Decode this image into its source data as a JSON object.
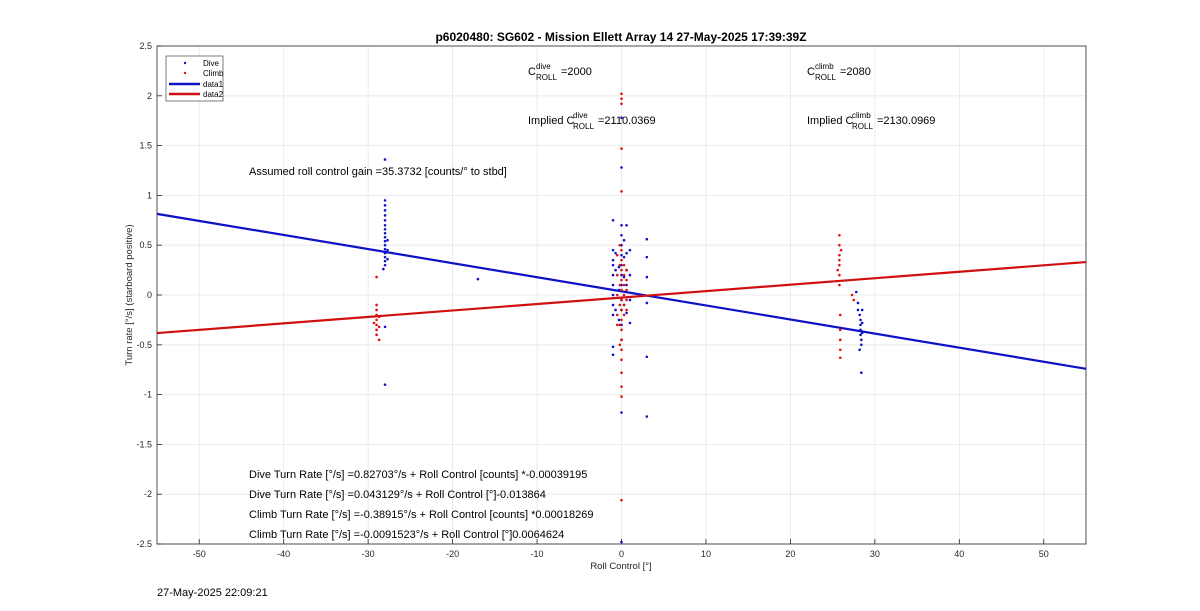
{
  "chart_data": {
    "type": "scatter",
    "title": "p6020480: SG602 - Mission Ellett Array 14 27-May-2025 17:39:39Z",
    "xlabel": "Roll Control [°]",
    "ylabel": "Turn rate [°/s] (starboard positive)",
    "xlim": [
      -55,
      55
    ],
    "ylim": [
      -2.5,
      2.5
    ],
    "xticks": [
      -50,
      -40,
      -30,
      -20,
      -10,
      0,
      10,
      20,
      30,
      40,
      50
    ],
    "yticks": [
      -2.5,
      -2,
      -1.5,
      -1,
      -0.5,
      0,
      0.5,
      1,
      1.5,
      2,
      2.5
    ],
    "grid": true,
    "legend_position": "top-left",
    "series": [
      {
        "name": "Dive",
        "kind": "points",
        "color": "#1010d0",
        "points": [
          [
            -28,
            1.36
          ],
          [
            -28,
            0.95
          ],
          [
            -28,
            0.9
          ],
          [
            -28,
            0.85
          ],
          [
            -28,
            0.8
          ],
          [
            -28,
            0.75
          ],
          [
            -28,
            0.7
          ],
          [
            -28,
            0.66
          ],
          [
            -28,
            0.62
          ],
          [
            -28,
            0.58
          ],
          [
            -28,
            0.54
          ],
          [
            -28,
            0.5
          ],
          [
            -28,
            0.46
          ],
          [
            -28,
            0.42
          ],
          [
            -28,
            0.38
          ],
          [
            -28,
            0.34
          ],
          [
            -28,
            0.3
          ],
          [
            -27.7,
            0.55
          ],
          [
            -27.7,
            0.45
          ],
          [
            -27.7,
            0.36
          ],
          [
            -28.2,
            0.26
          ],
          [
            -28,
            -0.32
          ],
          [
            -28,
            -0.9
          ],
          [
            -17,
            0.16
          ],
          [
            -1,
            0.75
          ],
          [
            -1,
            0.45
          ],
          [
            -1,
            0.35
          ],
          [
            -1,
            0.3
          ],
          [
            -1,
            0.2
          ],
          [
            -1,
            0.1
          ],
          [
            -1,
            0
          ],
          [
            -1,
            -0.1
          ],
          [
            -1,
            -0.2
          ],
          [
            -1,
            -0.52
          ],
          [
            -1,
            -0.6
          ],
          [
            -0.7,
            0.42
          ],
          [
            -0.7,
            0.25
          ],
          [
            -0.7,
            -0.15
          ],
          [
            -0.3,
            0.28
          ],
          [
            -0.3,
            0.05
          ],
          [
            -0.3,
            -0.25
          ],
          [
            0,
            1.78
          ],
          [
            0,
            1.28
          ],
          [
            0,
            0.7
          ],
          [
            0,
            0.6
          ],
          [
            0,
            0.5
          ],
          [
            0,
            0.4
          ],
          [
            0,
            0.3
          ],
          [
            0,
            0.2
          ],
          [
            0,
            0.1
          ],
          [
            0,
            -0.05
          ],
          [
            0,
            -0.15
          ],
          [
            0,
            -0.3
          ],
          [
            0,
            -0.45
          ],
          [
            0,
            -1.18
          ],
          [
            0,
            -2.48
          ],
          [
            0.3,
            0.55
          ],
          [
            0.3,
            0.38
          ],
          [
            0.3,
            0.18
          ],
          [
            0.3,
            -0.1
          ],
          [
            0.6,
            0.7
          ],
          [
            0.6,
            0.42
          ],
          [
            0.6,
            0.25
          ],
          [
            0.6,
            0.1
          ],
          [
            0.6,
            -0.18
          ],
          [
            1,
            0.45
          ],
          [
            1,
            0.2
          ],
          [
            1,
            -0.05
          ],
          [
            1,
            -0.28
          ],
          [
            3,
            0.56
          ],
          [
            3,
            0.38
          ],
          [
            3,
            0.18
          ],
          [
            3,
            -0.08
          ],
          [
            3,
            -0.62
          ],
          [
            3,
            -1.22
          ],
          [
            27.8,
            0.03
          ],
          [
            28,
            -0.08
          ],
          [
            28,
            -0.15
          ],
          [
            28.2,
            -0.2
          ],
          [
            28.3,
            -0.25
          ],
          [
            28.3,
            -0.3
          ],
          [
            28.3,
            -0.35
          ],
          [
            28.3,
            -0.4
          ],
          [
            28.4,
            -0.45
          ],
          [
            28.4,
            -0.5
          ],
          [
            28.2,
            -0.55
          ],
          [
            28.4,
            -0.78
          ],
          [
            28.5,
            -0.15
          ],
          [
            28.5,
            -0.28
          ],
          [
            28.5,
            -0.38
          ]
        ]
      },
      {
        "name": "Climb",
        "kind": "points",
        "color": "#e01010",
        "points": [
          [
            -29,
            0.18
          ],
          [
            -29,
            -0.1
          ],
          [
            -29,
            -0.15
          ],
          [
            -29,
            -0.2
          ],
          [
            -29,
            -0.25
          ],
          [
            -29,
            -0.3
          ],
          [
            -29,
            -0.35
          ],
          [
            -29,
            -0.4
          ],
          [
            -28.7,
            -0.22
          ],
          [
            -28.7,
            -0.32
          ],
          [
            -28.7,
            -0.45
          ],
          [
            -29.3,
            -0.28
          ],
          [
            -0.5,
            0.4
          ],
          [
            -0.5,
            0.2
          ],
          [
            -0.5,
            0
          ],
          [
            -0.5,
            -0.2
          ],
          [
            -0.5,
            -0.3
          ],
          [
            -0.2,
            0.5
          ],
          [
            -0.2,
            0.3
          ],
          [
            -0.2,
            0.1
          ],
          [
            -0.2,
            -0.1
          ],
          [
            -0.2,
            -0.3
          ],
          [
            -0.2,
            -0.5
          ],
          [
            0,
            2.02
          ],
          [
            0,
            1.97
          ],
          [
            0,
            1.92
          ],
          [
            0,
            1.47
          ],
          [
            0,
            1.04
          ],
          [
            0,
            0.45
          ],
          [
            0,
            0.35
          ],
          [
            0,
            0.25
          ],
          [
            0,
            0.15
          ],
          [
            0,
            0.05
          ],
          [
            0,
            -0.05
          ],
          [
            0,
            -0.15
          ],
          [
            0,
            -0.25
          ],
          [
            0,
            -0.35
          ],
          [
            0,
            -0.45
          ],
          [
            0,
            -0.55
          ],
          [
            0,
            -0.65
          ],
          [
            0,
            -0.78
          ],
          [
            0,
            -0.92
          ],
          [
            0,
            -1.02
          ],
          [
            0,
            -2.06
          ],
          [
            0.3,
            0.3
          ],
          [
            0.3,
            0.2
          ],
          [
            0.3,
            0.1
          ],
          [
            0.3,
            0
          ],
          [
            0.3,
            -0.1
          ],
          [
            0.3,
            -0.2
          ],
          [
            0.6,
            0.25
          ],
          [
            0.6,
            0.15
          ],
          [
            0.6,
            0.05
          ],
          [
            0.6,
            -0.05
          ],
          [
            0.6,
            -0.15
          ],
          [
            25.8,
            0.6
          ],
          [
            25.8,
            0.5
          ],
          [
            25.8,
            0.4
          ],
          [
            25.8,
            0.3
          ],
          [
            25.8,
            0.2
          ],
          [
            25.8,
            0.1
          ],
          [
            25.8,
            0.35
          ],
          [
            25.6,
            0.25
          ],
          [
            26,
            0.45
          ],
          [
            25.9,
            -0.2
          ],
          [
            25.9,
            -0.35
          ],
          [
            25.9,
            -0.45
          ],
          [
            25.9,
            -0.55
          ],
          [
            25.9,
            -0.63
          ],
          [
            27.3,
            0
          ],
          [
            27.5,
            -0.05
          ]
        ]
      },
      {
        "name": "data1",
        "kind": "line",
        "color": "#1010c8",
        "points": [
          [
            -55,
            0.8145
          ],
          [
            55,
            -0.741
          ]
        ]
      },
      {
        "name": "data2",
        "kind": "line",
        "color": "#d01010",
        "points": [
          [
            -55,
            -0.3823
          ],
          [
            55,
            0.3306
          ]
        ]
      }
    ]
  },
  "annotations": {
    "c_dive_sup": "dive",
    "c_dive_sub": "ROLL",
    "c_dive_val": "=2000",
    "c_climb_sup": "climb",
    "c_climb_sub": "ROLL",
    "c_climb_val": "=2080",
    "implied_prefix": "Implied C",
    "implied_dive_val": "=2110.0369",
    "implied_climb_val": "=2130.0969",
    "gain": "Assumed roll control gain =35.3732 [counts/° to stbd]",
    "eq1": "Dive Turn Rate [°/s] =0.82703°/s + Roll Control [counts] *-0.00039195",
    "eq2": "Dive Turn Rate [°/s] =0.043129°/s + Roll Control [°]-0.013864",
    "eq3": "Climb Turn Rate [°/s] =-0.38915°/s + Roll Control [counts] *0.00018269",
    "eq4": "Climb Turn Rate [°/s] =-0.0091523°/s + Roll Control [°]0.0064624",
    "c_letter": "C"
  },
  "timestamp": "27-May-2025 22:09:21"
}
